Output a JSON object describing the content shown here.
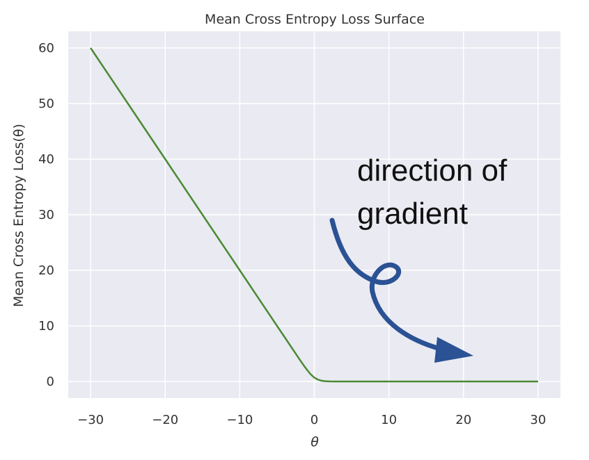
{
  "chart_data": {
    "type": "line",
    "title": "Mean Cross Entropy Loss Surface",
    "xlabel": "θ",
    "ylabel": "Mean Cross Entropy Loss(θ)",
    "xlim": [
      -33,
      33
    ],
    "ylim": [
      -3,
      63
    ],
    "xticks": [
      -30,
      -20,
      -10,
      0,
      10,
      20,
      30
    ],
    "xtick_labels": [
      "−30",
      "−20",
      "−10",
      "0",
      "10",
      "20",
      "30"
    ],
    "yticks": [
      0,
      10,
      20,
      30,
      40,
      50,
      60
    ],
    "ytick_labels": [
      "0",
      "10",
      "20",
      "30",
      "40",
      "50",
      "60"
    ],
    "grid": true,
    "series": [
      {
        "color": "#4a8a34",
        "x": [
          -30,
          -25,
          -20,
          -15,
          -10,
          -5,
          -4,
          -3,
          -2,
          -1.5,
          -1,
          -0.5,
          0,
          0.5,
          1,
          1.5,
          2,
          3,
          4,
          5,
          10,
          20,
          30
        ],
        "y": [
          60,
          50,
          40,
          30,
          20,
          10,
          8,
          6.002,
          4.018,
          3.049,
          2.127,
          1.313,
          0.693,
          0.313,
          0.127,
          0.049,
          0.018,
          0.0025,
          0.0003,
          0,
          0,
          0,
          0
        ]
      }
    ],
    "annotation": {
      "text_lines": [
        "direction of",
        "gradient"
      ],
      "arrow_color": "#2a5294"
    }
  },
  "colors": {
    "background": "#eaeaf2",
    "grid": "#ffffff"
  }
}
